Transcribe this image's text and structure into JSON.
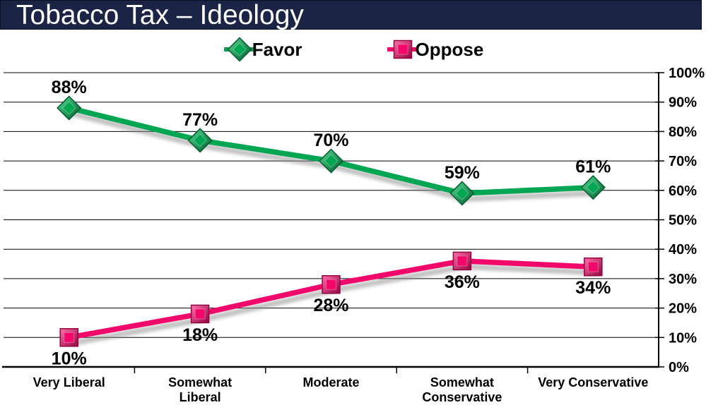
{
  "header": {
    "title": "Tobacco Tax – Ideology",
    "bar_color": "#1B2444"
  },
  "legend": {
    "items": [
      "Favor",
      "Oppose"
    ],
    "position": "top-center"
  },
  "chart_data": {
    "type": "line",
    "title": "Tobacco Tax – Ideology",
    "categories": [
      "Very Liberal",
      "Somewhat\nLiberal",
      "Moderate",
      "Somewhat\nConservative",
      "Very Conservative"
    ],
    "series": [
      {
        "name": "Favor",
        "values": [
          88,
          77,
          70,
          59,
          61
        ],
        "color": "#00A651",
        "dark": "#005A2C",
        "light": "#55DD95",
        "marker": "diamond",
        "label_position": "above"
      },
      {
        "name": "Oppose",
        "values": [
          10,
          18,
          28,
          36,
          34
        ],
        "color": "#F2076A",
        "dark": "#93033F",
        "light": "#FF6FAC",
        "marker": "square",
        "label_position": "below"
      }
    ],
    "xlabel": "",
    "ylabel": "",
    "ylim": [
      0,
      100
    ],
    "ytick_step": 10,
    "ytick_labels": [
      "0%",
      "10%",
      "20%",
      "30%",
      "40%",
      "50%",
      "60%",
      "70%",
      "80%",
      "90%",
      "100%"
    ],
    "data_label_suffix": "%",
    "grid": true,
    "y_axis_side": "right",
    "shadow_color": "#8f8f8f"
  }
}
